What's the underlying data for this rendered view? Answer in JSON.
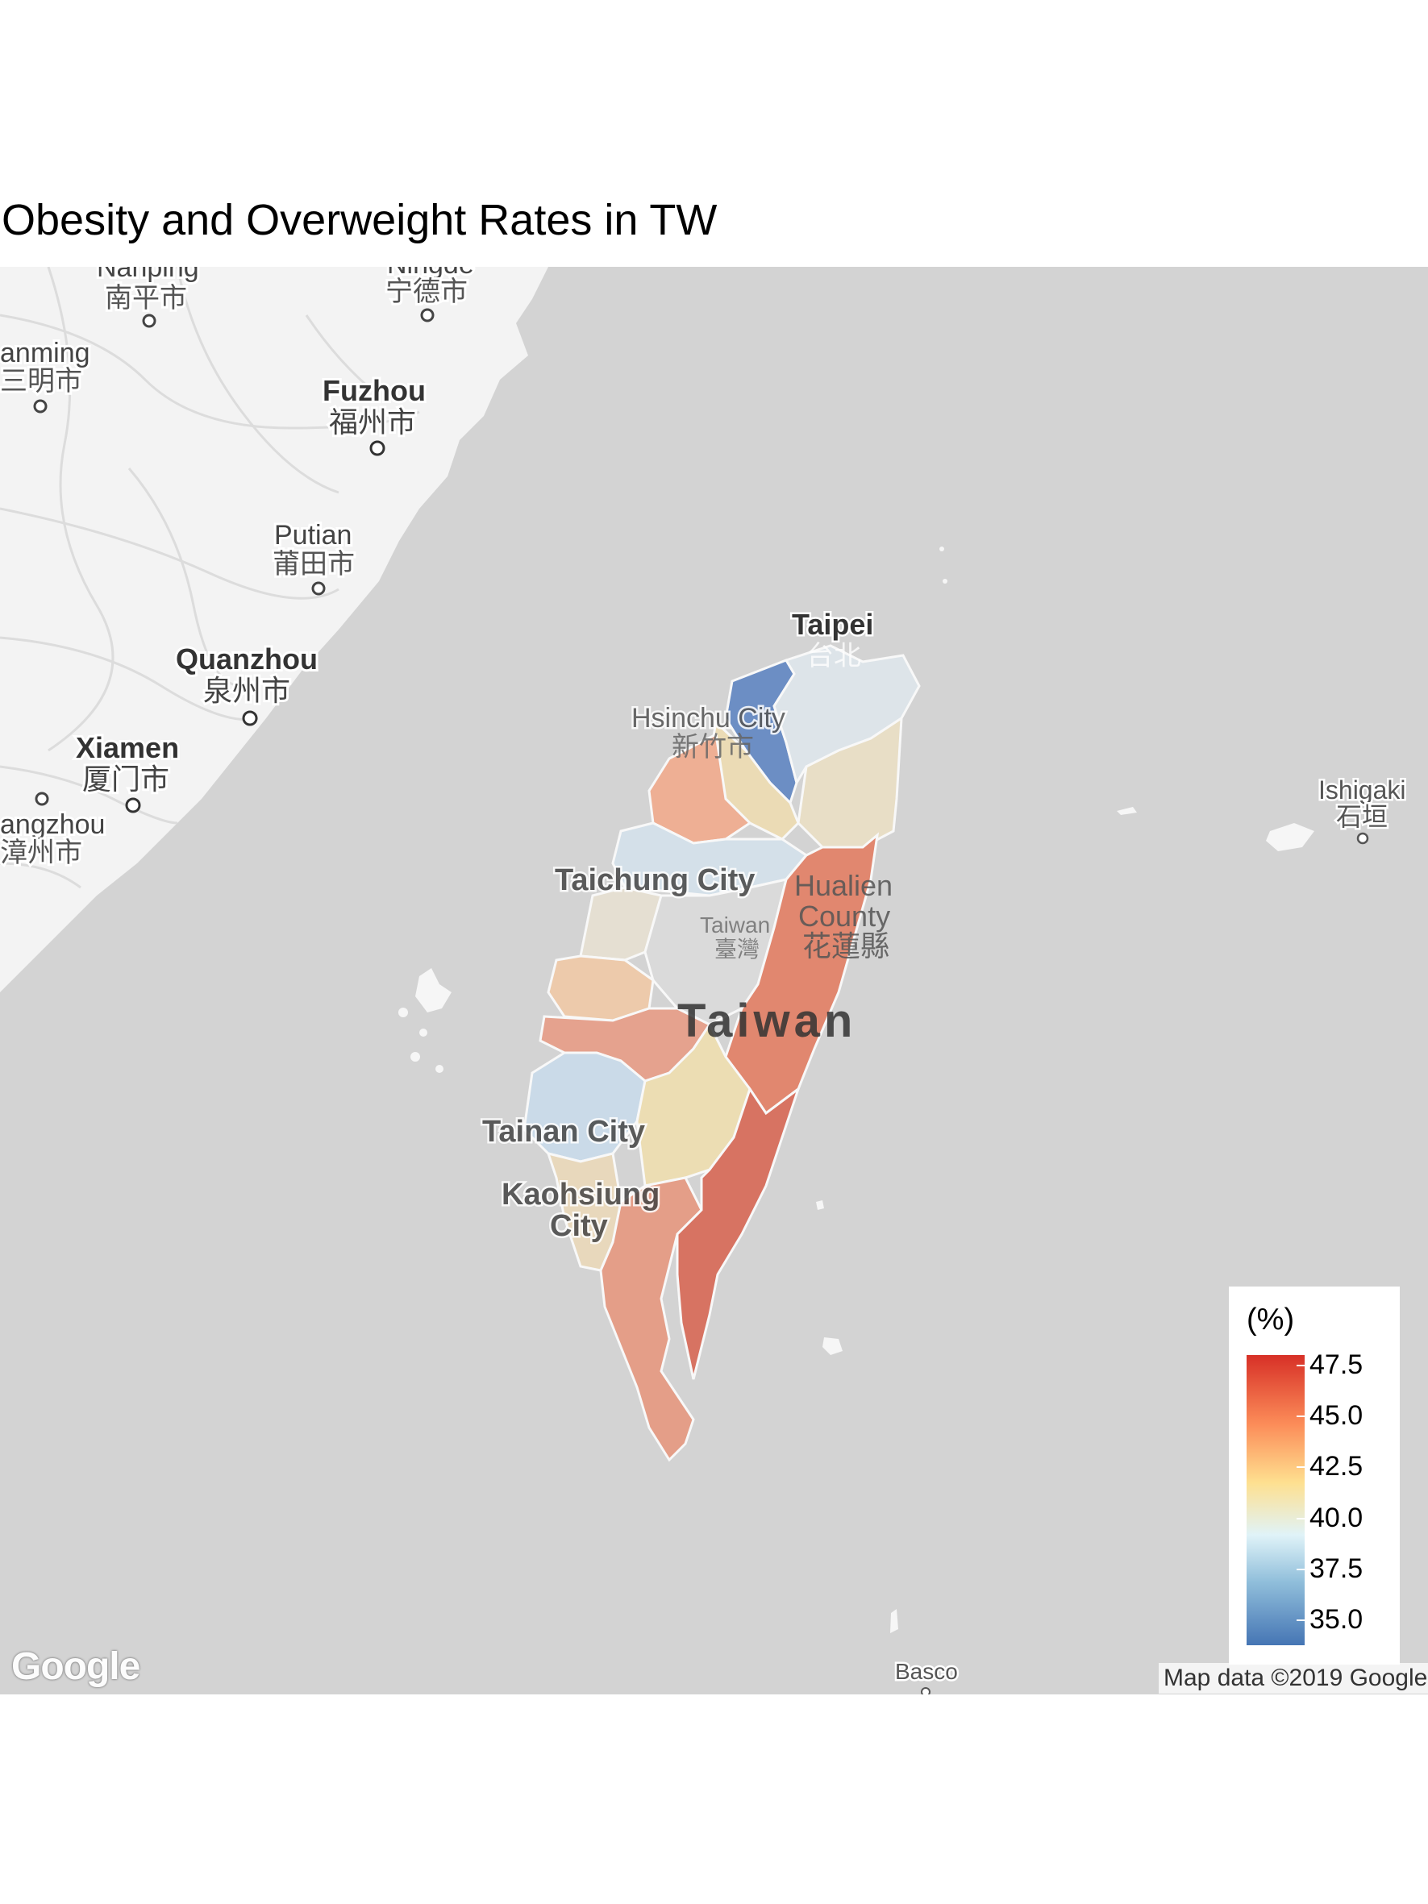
{
  "title": "Obesity and Overweight Rates in TW",
  "map": {
    "place_labels": {
      "nanping_en": "Nanping",
      "nanping_zh": "南平市",
      "ningde_en": "Ningde",
      "ningde_zh": "宁德市",
      "sanming_en": "anming",
      "sanming_zh": "三明市",
      "fuzhou_en": "Fuzhou",
      "fuzhou_zh": "福州市",
      "putian_en": "Putian",
      "putian_zh": "莆田市",
      "quanzhou_en": "Quanzhou",
      "quanzhou_zh": "泉州市",
      "xiamen_en": "Xiamen",
      "xiamen_zh": "厦门市",
      "zhangzhou_en": "angzhou",
      "zhangzhou_zh": "漳州市",
      "taipei_en": "Taipei",
      "taipei_zh": "台北",
      "hsinchu_en": "Hsinchu City",
      "hsinchu_zh": "新竹市",
      "taichung_en": "Taichung City",
      "taiwan_small_en": "Taiwan",
      "taiwan_small_zh": "臺灣",
      "hualien_en_1": "Hualien",
      "hualien_en_2": "County",
      "hualien_zh": "花蓮縣",
      "taiwan_big": "Taiwan",
      "tainan_en": "Tainan City",
      "kaohsiung_en_1": "Kaohsiung",
      "kaohsiung_en_2": "City",
      "ishigaki_en": "Ishigaki",
      "ishigaki_zh": "石垣",
      "basco_en": "Basco"
    },
    "colors": {
      "water": "#d3d3d3",
      "land": "#f2f2f2",
      "low": "#4575b4",
      "mid": "#e0f3f8",
      "high": "#d73027"
    }
  },
  "legend": {
    "title": "(%)",
    "ticks": [
      "47.5",
      "45.0",
      "42.5",
      "40.0",
      "37.5",
      "35.0"
    ]
  },
  "google_logo": "Google",
  "attribution": "Map data ©2019 Google"
}
